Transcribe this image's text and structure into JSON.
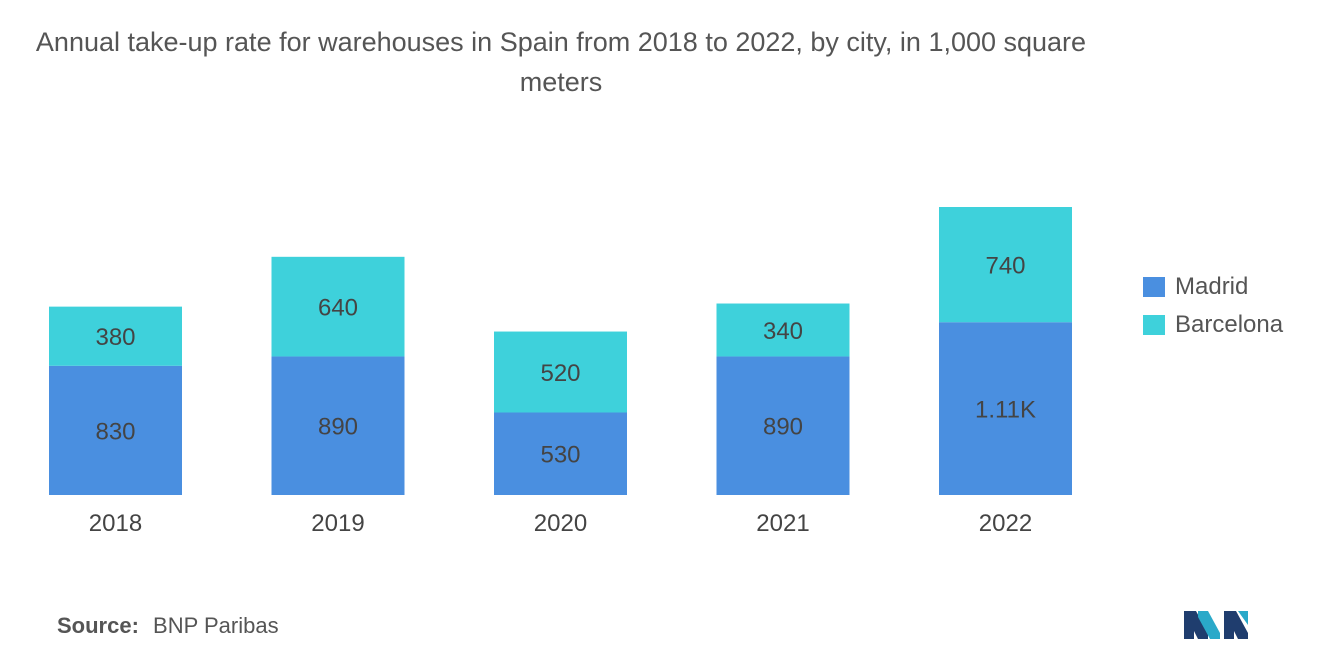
{
  "title": "Annual take-up rate for warehouses in Spain from 2018 to 2022, by city, in 1,000 square meters",
  "source": {
    "label": "Source:",
    "value": "BNP Paribas"
  },
  "chart_data": {
    "type": "bar",
    "stacked": true,
    "title": "Annual take-up rate for warehouses in Spain from 2018 to 2022, by city, in 1,000 square meters",
    "categories": [
      "2018",
      "2019",
      "2020",
      "2021",
      "2022"
    ],
    "series": [
      {
        "name": "Madrid",
        "color": "#4a8fe0",
        "values": [
          830,
          890,
          530,
          890,
          1110
        ],
        "labels": [
          "830",
          "890",
          "530",
          "890",
          "1.11K"
        ]
      },
      {
        "name": "Barcelona",
        "color": "#3ed1db",
        "values": [
          380,
          640,
          520,
          340,
          740
        ],
        "labels": [
          "380",
          "640",
          "520",
          "340",
          "740"
        ]
      }
    ],
    "xlabel": "",
    "ylabel": "",
    "ylim": [
      0,
      1850
    ],
    "grid": false,
    "legend": "right"
  }
}
